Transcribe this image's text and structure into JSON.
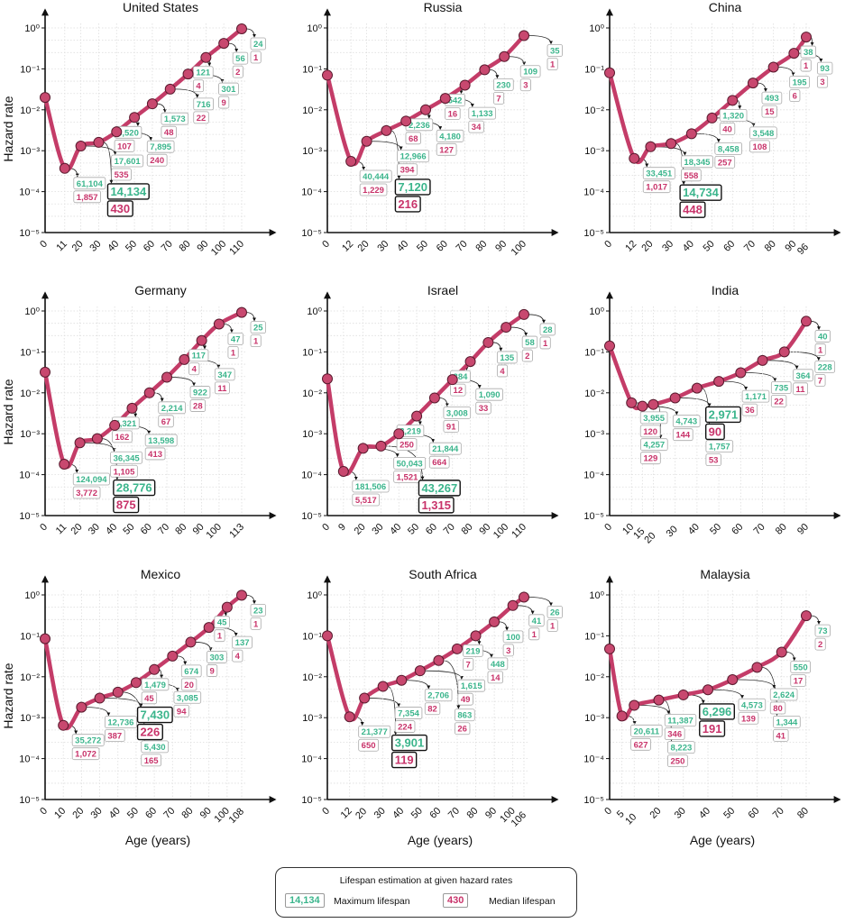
{
  "colors": {
    "curve": "#c43c68",
    "point": "#c8486f",
    "max_text": "#3bb58c",
    "median_text": "#c8336a"
  },
  "legend": {
    "title": "Lifespan estimation at given hazard rates",
    "max_example": "14,134",
    "max_label": "Maximum lifespan",
    "median_example": "430",
    "median_label": "Median lifespan"
  },
  "chart_data": [
    {
      "type": "line",
      "title": "United States",
      "ylabel": "Hazard rate",
      "xlabel": "",
      "yscale": "log",
      "ylim": [
        1e-05,
        1
      ],
      "yticks": [
        "10⁰",
        "10⁻¹",
        "10⁻²",
        "10⁻³",
        "10⁻⁴",
        "10⁻⁵"
      ],
      "ages": [
        0,
        11,
        20,
        30,
        40,
        50,
        60,
        70,
        80,
        90,
        100,
        110
      ],
      "hazard": [
        0.02,
        0.00037,
        0.0013,
        0.0016,
        0.0029,
        0.0065,
        0.014,
        0.032,
        0.075,
        0.19,
        0.42,
        0.95
      ],
      "max_lifespan": [
        null,
        "61,104",
        "17,601",
        "14,134",
        "7,895",
        "3,520",
        "1,573",
        "716",
        "301",
        "121",
        "56",
        "24"
      ],
      "median_lifespan": [
        null,
        "1,857",
        "535",
        "430",
        "240",
        "107",
        "48",
        "22",
        "9",
        "4",
        "2",
        "1"
      ],
      "highlight_age": 30
    },
    {
      "type": "line",
      "title": "Russia",
      "ylabel": "",
      "xlabel": "",
      "yscale": "log",
      "ylim": [
        1e-05,
        1
      ],
      "yticks": [
        "10⁰",
        "10⁻¹",
        "10⁻²",
        "10⁻³",
        "10⁻⁴",
        "10⁻⁵"
      ],
      "ages": [
        0,
        12,
        20,
        30,
        40,
        50,
        60,
        70,
        80,
        90,
        100
      ],
      "hazard": [
        0.07,
        0.00055,
        0.0017,
        0.0031,
        0.0053,
        0.01,
        0.019,
        0.04,
        0.095,
        0.2,
        0.65
      ],
      "max_lifespan": [
        null,
        "40,444",
        "12,966",
        "7,120",
        "4,180",
        "2,236",
        "1,133",
        "542",
        "230",
        "109",
        "35"
      ],
      "median_lifespan": [
        null,
        "1,229",
        "394",
        "216",
        "127",
        "68",
        "34",
        "16",
        "7",
        "3",
        "1"
      ],
      "highlight_age": 30
    },
    {
      "type": "line",
      "title": "China",
      "ylabel": "",
      "xlabel": "",
      "yscale": "log",
      "ylim": [
        1e-05,
        1
      ],
      "yticks": [
        "10⁰",
        "10⁻¹",
        "10⁻²",
        "10⁻³",
        "10⁻⁴",
        "10⁻⁵"
      ],
      "ages": [
        0,
        12,
        20,
        30,
        40,
        50,
        60,
        70,
        80,
        90,
        96
      ],
      "hazard": [
        0.08,
        0.00065,
        0.00125,
        0.0015,
        0.0026,
        0.0063,
        0.017,
        0.045,
        0.11,
        0.24,
        0.6
      ],
      "max_lifespan": [
        null,
        "33,451",
        "18,345",
        "14,734",
        "8,458",
        "3,548",
        "1,320",
        "493",
        "195",
        "93",
        "38"
      ],
      "median_lifespan": [
        null,
        "1,017",
        "558",
        "448",
        "257",
        "108",
        "40",
        "15",
        "6",
        "3",
        "1"
      ],
      "highlight_age": 30
    },
    {
      "type": "line",
      "title": "Germany",
      "ylabel": "Hazard rate",
      "xlabel": "",
      "yscale": "log",
      "ylim": [
        1e-05,
        1
      ],
      "yticks": [
        "10⁰",
        "10⁻¹",
        "10⁻²",
        "10⁻³",
        "10⁻⁴",
        "10⁻⁵"
      ],
      "ages": [
        0,
        11,
        20,
        30,
        40,
        50,
        60,
        70,
        80,
        90,
        100,
        113
      ],
      "hazard": [
        0.032,
        0.00018,
        0.0006,
        0.00076,
        0.0016,
        0.0042,
        0.01,
        0.024,
        0.065,
        0.19,
        0.48,
        0.92
      ],
      "max_lifespan": [
        null,
        "124,094",
        "36,345",
        "28,776",
        "13,598",
        "5,321",
        "2,214",
        "922",
        "347",
        "117",
        "47",
        "25"
      ],
      "median_lifespan": [
        null,
        "3,772",
        "1,105",
        "875",
        "413",
        "162",
        "67",
        "28",
        "11",
        "4",
        "1",
        "1"
      ],
      "highlight_age": 30
    },
    {
      "type": "line",
      "title": "Israel",
      "ylabel": "",
      "xlabel": "",
      "yscale": "log",
      "ylim": [
        1e-05,
        1
      ],
      "yticks": [
        "10⁰",
        "10⁻¹",
        "10⁻²",
        "10⁻³",
        "10⁻⁴",
        "10⁻⁵"
      ],
      "ages": [
        0,
        9,
        20,
        30,
        40,
        50,
        60,
        70,
        80,
        90,
        100,
        110
      ],
      "hazard": [
        0.022,
        0.00012,
        0.00044,
        0.0005,
        0.001,
        0.0027,
        0.0075,
        0.021,
        0.058,
        0.17,
        0.4,
        0.82
      ],
      "max_lifespan": [
        null,
        "181,506",
        "50,043",
        "43,267",
        "21,844",
        "8,219",
        "3,008",
        "1,090",
        "384",
        "135",
        "58",
        "28"
      ],
      "median_lifespan": [
        null,
        "5,517",
        "1,521",
        "1,315",
        "664",
        "250",
        "91",
        "33",
        "12",
        "4",
        "2",
        "1"
      ],
      "highlight_age": 30
    },
    {
      "type": "line",
      "title": "India",
      "ylabel": "",
      "xlabel": "",
      "yscale": "log",
      "ylim": [
        1e-05,
        1
      ],
      "yticks": [
        "10⁰",
        "10⁻¹",
        "10⁻²",
        "10⁻³",
        "10⁻⁴",
        "10⁻⁵"
      ],
      "ages": [
        0,
        10,
        15,
        20,
        30,
        40,
        50,
        60,
        70,
        80,
        90
      ],
      "hazard": [
        0.14,
        0.0057,
        0.0047,
        0.0052,
        0.0075,
        0.013,
        0.019,
        0.031,
        0.062,
        0.1,
        0.56
      ],
      "max_lifespan": [
        null,
        "3,955",
        "4,743",
        "4,257",
        "2,971",
        "1,757",
        "1,171",
        "735",
        "364",
        "228",
        "40"
      ],
      "median_lifespan": [
        null,
        "120",
        "144",
        "129",
        "90",
        "53",
        "36",
        "22",
        "11",
        "7",
        "1"
      ],
      "highlight_age": 30
    },
    {
      "type": "line",
      "title": "Mexico",
      "ylabel": "Hazard rate",
      "xlabel": "Age (years)",
      "yscale": "log",
      "ylim": [
        1e-05,
        1
      ],
      "yticks": [
        "10⁰",
        "10⁻¹",
        "10⁻²",
        "10⁻³",
        "10⁻⁴",
        "10⁻⁵"
      ],
      "ages": [
        0,
        10,
        20,
        30,
        40,
        50,
        60,
        70,
        80,
        90,
        100,
        108
      ],
      "hazard": [
        0.085,
        0.00065,
        0.0018,
        0.003,
        0.0042,
        0.0072,
        0.015,
        0.032,
        0.07,
        0.16,
        0.5,
        0.98
      ],
      "max_lifespan": [
        null,
        "35,272",
        "12,736",
        "7,430",
        "5,430",
        "3,085",
        "1,479",
        "674",
        "303",
        "137",
        "45",
        "23"
      ],
      "median_lifespan": [
        null,
        "1,072",
        "387",
        "226",
        "165",
        "94",
        "45",
        "20",
        "9",
        "4",
        "1",
        "1"
      ],
      "highlight_age": 30
    },
    {
      "type": "line",
      "title": "South Africa",
      "ylabel": "",
      "xlabel": "Age (years)",
      "yscale": "log",
      "ylim": [
        1e-05,
        1
      ],
      "yticks": [
        "10⁰",
        "10⁻¹",
        "10⁻²",
        "10⁻³",
        "10⁻⁴",
        "10⁻⁵"
      ],
      "ages": [
        0,
        12,
        20,
        30,
        40,
        50,
        60,
        70,
        80,
        90,
        100,
        106
      ],
      "hazard": [
        0.1,
        0.00105,
        0.003,
        0.0058,
        0.0082,
        0.014,
        0.025,
        0.048,
        0.1,
        0.22,
        0.55,
        0.88
      ],
      "max_lifespan": [
        null,
        "21,377",
        "7,354",
        "3,901",
        "2,706",
        "1,615",
        "863",
        "448",
        "219",
        "100",
        "41",
        "26"
      ],
      "median_lifespan": [
        null,
        "650",
        "224",
        "119",
        "82",
        "49",
        "26",
        "14",
        "7",
        "3",
        "1",
        "1"
      ],
      "highlight_age": 30
    },
    {
      "type": "line",
      "title": "Malaysia",
      "ylabel": "",
      "xlabel": "Age (years)",
      "yscale": "log",
      "ylim": [
        1e-05,
        1
      ],
      "yticks": [
        "10⁰",
        "10⁻¹",
        "10⁻²",
        "10⁻³",
        "10⁻⁴",
        "10⁻⁵"
      ],
      "ages": [
        0,
        5,
        10,
        20,
        30,
        40,
        50,
        60,
        70,
        80
      ],
      "hazard": [
        0.048,
        0.0011,
        0.002,
        0.0027,
        0.0036,
        0.0048,
        0.0085,
        0.017,
        0.04,
        0.31
      ],
      "max_lifespan": [
        null,
        "20,611",
        "11,387",
        "8,223",
        "6,296",
        "4,573",
        "2,624",
        "1,344",
        "550",
        "73"
      ],
      "median_lifespan": [
        null,
        "627",
        "346",
        "250",
        "191",
        "139",
        "80",
        "41",
        "17",
        "2"
      ],
      "highlight_age": 30
    }
  ]
}
